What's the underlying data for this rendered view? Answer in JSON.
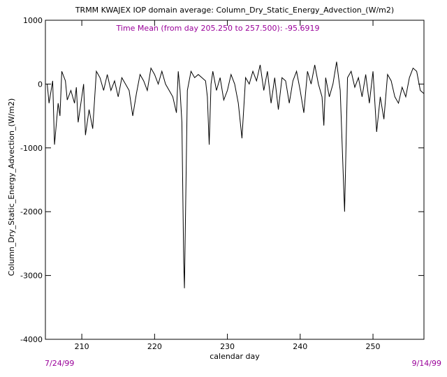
{
  "chart_data": {
    "type": "line",
    "title": "TRMM KWAJEX IOP domain average: Column_Dry_Static_Energy_Advection_(W/m2)",
    "annotation": "Time Mean (from day 205.250 to 257.500): -95.6919",
    "x_label": "calendar day",
    "y_label": "Column_Dry_Static_Energy_Advection_(W/m2)",
    "start_date": "7/24/99",
    "end_date": "9/14/99",
    "xlim": [
      205,
      257
    ],
    "ylim": [
      -4000,
      1000
    ],
    "xticks": [
      210,
      220,
      230,
      240,
      250
    ],
    "yticks": [
      1000,
      0,
      -1000,
      -2000,
      -3000,
      -4000
    ],
    "series": [
      {
        "color": "#000000",
        "x": [
          205.25,
          205.5,
          206.0,
          206.25,
          206.75,
          207.0,
          207.25,
          207.75,
          208.0,
          208.5,
          209.0,
          209.25,
          209.5,
          210.0,
          210.25,
          210.5,
          211.0,
          211.5,
          212.0,
          212.5,
          213.0,
          213.5,
          214.0,
          214.5,
          215.0,
          215.5,
          216.0,
          216.5,
          217.0,
          217.5,
          218.0,
          218.5,
          219.0,
          219.5,
          220.0,
          220.5,
          221.0,
          221.5,
          222.0,
          222.5,
          223.0,
          223.25,
          223.5,
          223.75,
          224.0,
          224.1,
          224.5,
          225.0,
          225.5,
          226.0,
          226.5,
          227.0,
          227.25,
          227.5,
          227.75,
          228.0,
          228.5,
          229.0,
          229.5,
          230.0,
          230.5,
          231.0,
          231.5,
          232.0,
          232.5,
          233.0,
          233.5,
          234.0,
          234.5,
          235.0,
          235.5,
          236.0,
          236.5,
          237.0,
          237.5,
          238.0,
          238.5,
          239.0,
          239.5,
          240.0,
          240.5,
          241.0,
          241.5,
          242.0,
          242.5,
          243.0,
          243.25,
          243.5,
          244.0,
          244.5,
          245.0,
          245.5,
          246.0,
          246.1,
          246.5,
          247.0,
          247.5,
          248.0,
          248.5,
          249.0,
          249.5,
          250.0,
          250.5,
          251.0,
          251.5,
          252.0,
          252.5,
          253.0,
          253.5,
          254.0,
          254.5,
          255.0,
          255.5,
          256.0,
          256.5,
          257.0
        ],
        "values": [
          0,
          -300,
          50,
          -950,
          -300,
          -500,
          200,
          50,
          -250,
          -100,
          -300,
          -50,
          -600,
          -200,
          0,
          -800,
          -400,
          -700,
          200,
          100,
          -100,
          150,
          -100,
          50,
          -200,
          100,
          0,
          -100,
          -500,
          -150,
          150,
          50,
          -100,
          250,
          150,
          0,
          200,
          0,
          -100,
          -200,
          -450,
          200,
          -100,
          -600,
          -2800,
          -3200,
          -100,
          200,
          100,
          150,
          100,
          50,
          -200,
          -950,
          0,
          200,
          -100,
          100,
          -250,
          -100,
          150,
          0,
          -300,
          -850,
          100,
          0,
          200,
          50,
          300,
          -100,
          200,
          -300,
          100,
          -400,
          100,
          50,
          -300,
          50,
          200,
          -100,
          -450,
          200,
          0,
          300,
          0,
          -200,
          -650,
          100,
          -200,
          0,
          350,
          -100,
          -1700,
          -2000,
          100,
          200,
          -50,
          100,
          -200,
          150,
          -300,
          200,
          -750,
          -200,
          -550,
          150,
          50,
          -200,
          -300,
          -50,
          -200,
          100,
          250,
          200,
          -100,
          -150
        ]
      }
    ]
  }
}
